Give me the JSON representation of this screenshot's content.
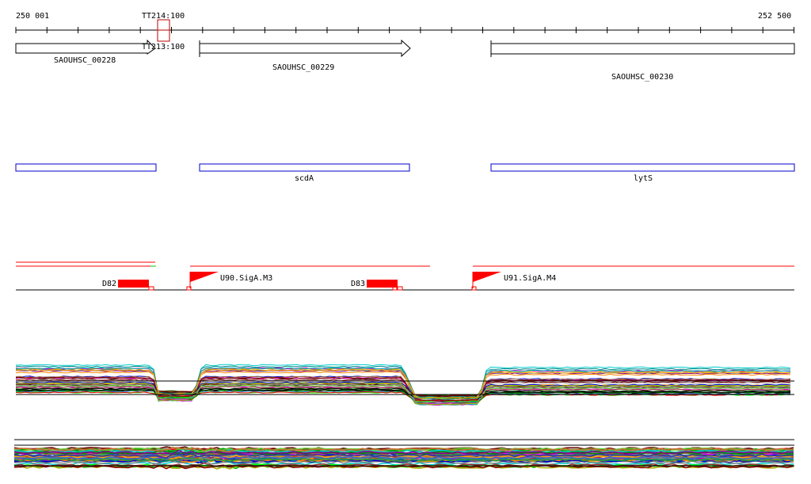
{
  "ruler": {
    "start_label": "250 001",
    "end_label": "252 500",
    "marker_top": "TT214:100",
    "marker_bottom": "TT213:100"
  },
  "genes": [
    {
      "label": "SAOUHSC_00228"
    },
    {
      "label": "SAOUHSC_00229"
    },
    {
      "label": "SAOUHSC_00230"
    }
  ],
  "annotations": [
    {
      "label": ""
    },
    {
      "label": "scdA"
    },
    {
      "label": "lytS"
    }
  ],
  "features": {
    "d82": "D82",
    "d83": "D83",
    "u90": "U90.SigA.M3",
    "u91": "U91.SigA.M4"
  },
  "colors": {
    "accent": "#ff0000",
    "annotation_box": "#0000cc",
    "marker": "#cc0000"
  }
}
